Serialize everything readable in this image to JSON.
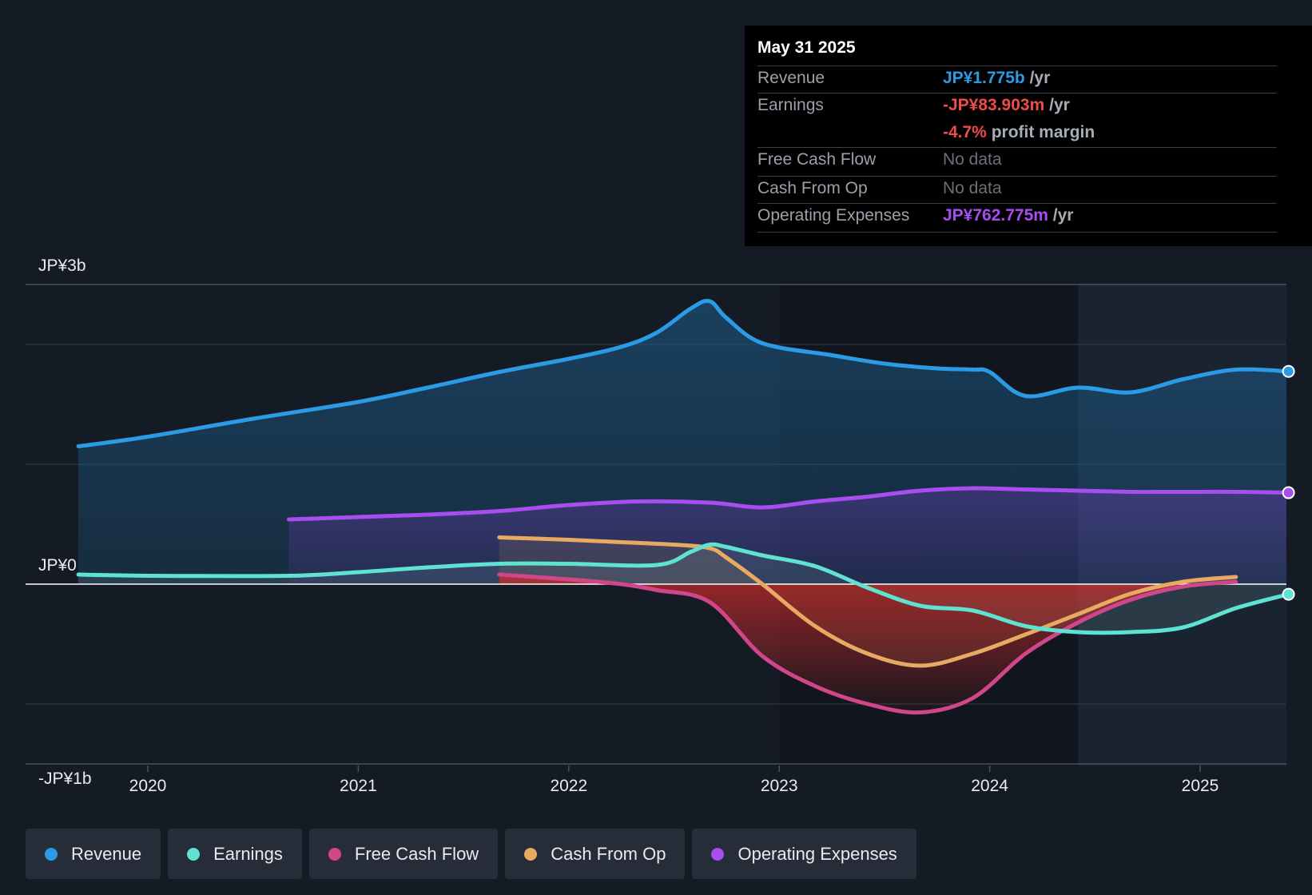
{
  "tooltip": {
    "date": "May 31 2025",
    "rows": [
      {
        "label": "Revenue",
        "value": "JP¥1.775b",
        "unit": "/yr"
      },
      {
        "label": "Earnings",
        "value": "-JP¥83.903m",
        "unit": "/yr"
      },
      {
        "label": "",
        "value": "-4.7%",
        "unit": "profit margin"
      },
      {
        "label": "Free Cash Flow",
        "value": "No data",
        "unit": ""
      },
      {
        "label": "Cash From Op",
        "value": "No data",
        "unit": ""
      },
      {
        "label": "Operating Expenses",
        "value": "JP¥762.775m",
        "unit": "/yr"
      }
    ]
  },
  "legend": [
    {
      "label": "Revenue",
      "color": "#2b9be6"
    },
    {
      "label": "Earnings",
      "color": "#5ee3d2"
    },
    {
      "label": "Free Cash Flow",
      "color": "#d0468a"
    },
    {
      "label": "Cash From Op",
      "color": "#e8aa62"
    },
    {
      "label": "Operating Expenses",
      "color": "#a84ef0"
    }
  ],
  "chart_data": {
    "type": "line",
    "title": "",
    "xlabel": "",
    "ylabel": "",
    "currency_unit": "JP¥ billions",
    "y_tick_labels": [
      "JP¥3b",
      "JP¥0",
      "-JP¥1b"
    ],
    "x_tick_labels": [
      "2020",
      "2021",
      "2022",
      "2023",
      "2024",
      "2025"
    ],
    "xlim": [
      2019.42,
      2025.42
    ],
    "ylim": [
      -1.5,
      2.5
    ],
    "forecast_shading_from": 2024.42,
    "series": [
      {
        "name": "Revenue",
        "color": "#2b9be6",
        "x": [
          2019.67,
          2020.0,
          2020.5,
          2021.0,
          2021.33,
          2021.67,
          2022.0,
          2022.25,
          2022.42,
          2022.58,
          2022.67,
          2022.75,
          2022.92,
          2023.25,
          2023.5,
          2023.75,
          2023.92,
          2024.0,
          2024.17,
          2024.42,
          2024.67,
          2024.92,
          2025.17,
          2025.42
        ],
        "y": [
          1.15,
          1.23,
          1.38,
          1.52,
          1.64,
          1.77,
          1.88,
          1.98,
          2.1,
          2.3,
          2.36,
          2.22,
          2.01,
          1.91,
          1.84,
          1.8,
          1.79,
          1.77,
          1.57,
          1.64,
          1.6,
          1.71,
          1.79,
          1.775
        ]
      },
      {
        "name": "Earnings",
        "color": "#5ee3d2",
        "x": [
          2019.67,
          2020.0,
          2020.67,
          2021.0,
          2021.33,
          2021.67,
          2022.0,
          2022.42,
          2022.58,
          2022.67,
          2022.75,
          2022.92,
          2023.17,
          2023.42,
          2023.67,
          2023.92,
          2024.17,
          2024.42,
          2024.67,
          2024.92,
          2025.17,
          2025.42
        ],
        "y": [
          0.08,
          0.07,
          0.07,
          0.1,
          0.14,
          0.17,
          0.17,
          0.16,
          0.27,
          0.33,
          0.31,
          0.24,
          0.15,
          -0.03,
          -0.18,
          -0.22,
          -0.35,
          -0.4,
          -0.4,
          -0.36,
          -0.2,
          -0.084
        ]
      },
      {
        "name": "Free Cash Flow",
        "color": "#d0468a",
        "x": [
          2021.67,
          2022.0,
          2022.25,
          2022.42,
          2022.67,
          2022.92,
          2023.17,
          2023.42,
          2023.67,
          2023.92,
          2024.17,
          2024.42,
          2024.67,
          2024.92,
          2025.17
        ],
        "y": [
          0.08,
          0.04,
          0.0,
          -0.05,
          -0.15,
          -0.6,
          -0.85,
          -1.0,
          -1.07,
          -0.95,
          -0.58,
          -0.32,
          -0.13,
          -0.02,
          0.02
        ]
      },
      {
        "name": "Cash From Op",
        "color": "#e8aa62",
        "x": [
          2021.67,
          2022.0,
          2022.25,
          2022.5,
          2022.67,
          2022.75,
          2022.92,
          2023.17,
          2023.42,
          2023.67,
          2023.92,
          2024.17,
          2024.42,
          2024.67,
          2024.92,
          2025.17
        ],
        "y": [
          0.39,
          0.37,
          0.35,
          0.33,
          0.3,
          0.22,
          0.0,
          -0.35,
          -0.58,
          -0.68,
          -0.58,
          -0.42,
          -0.25,
          -0.08,
          0.02,
          0.06
        ]
      },
      {
        "name": "Operating Expenses",
        "color": "#a84ef0",
        "x": [
          2020.67,
          2021.0,
          2021.33,
          2021.67,
          2022.0,
          2022.33,
          2022.67,
          2022.92,
          2023.17,
          2023.42,
          2023.67,
          2023.92,
          2024.17,
          2024.42,
          2024.67,
          2024.92,
          2025.17,
          2025.42
        ],
        "y": [
          0.54,
          0.56,
          0.58,
          0.61,
          0.66,
          0.69,
          0.68,
          0.64,
          0.69,
          0.73,
          0.78,
          0.8,
          0.79,
          0.78,
          0.77,
          0.77,
          0.77,
          0.763
        ]
      }
    ]
  }
}
